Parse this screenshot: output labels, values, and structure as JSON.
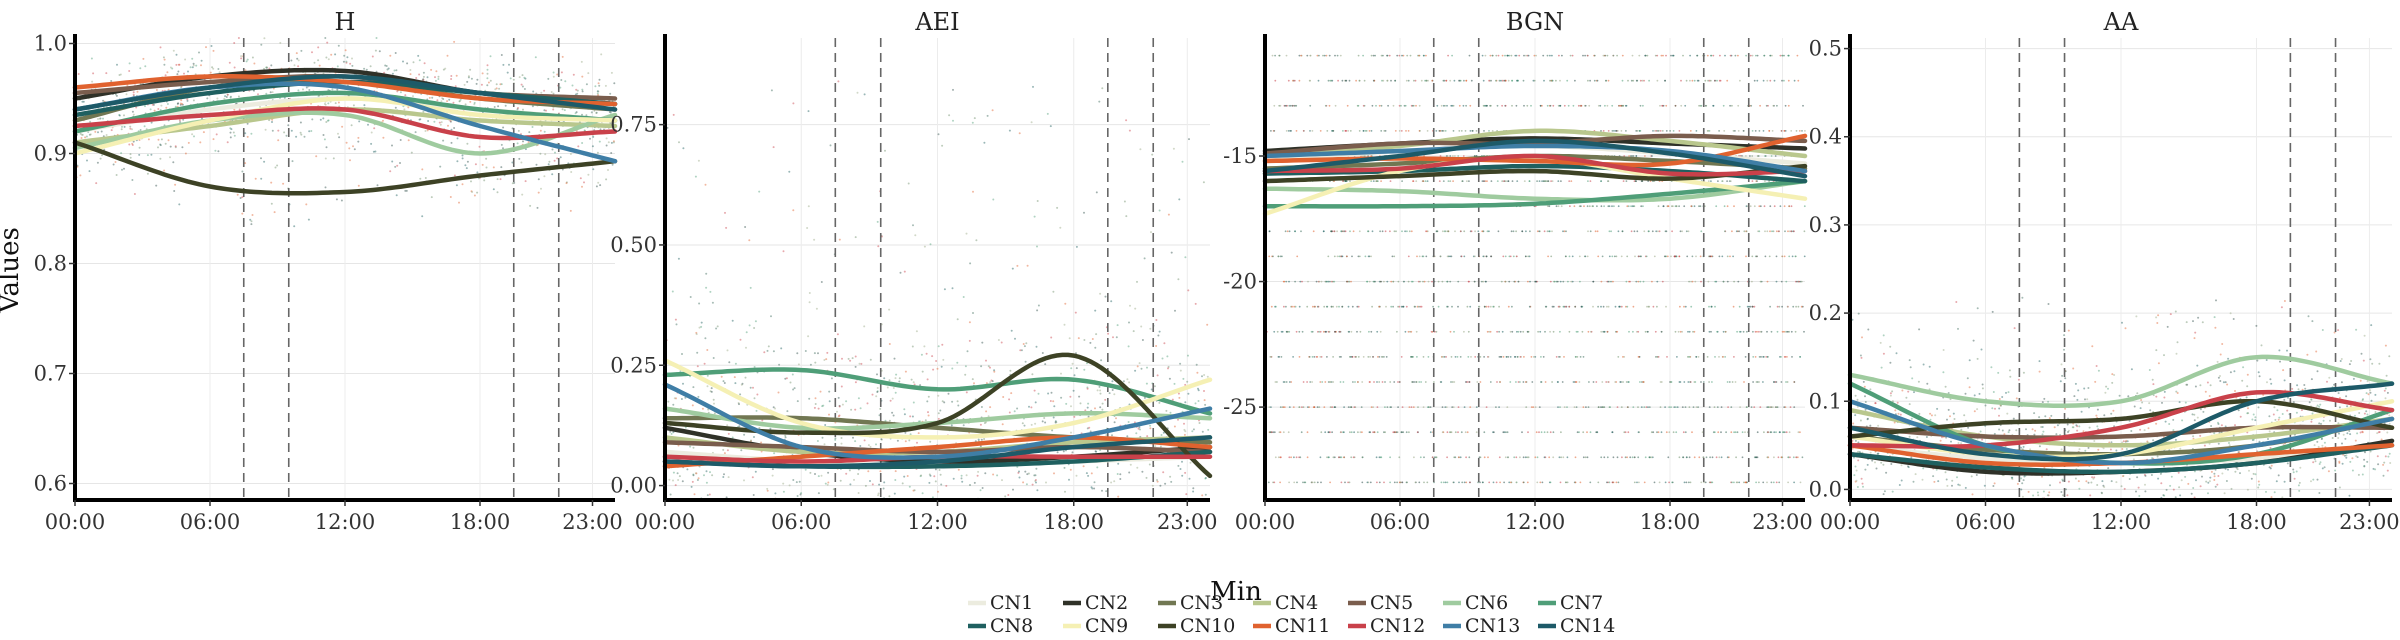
{
  "chart_data": {
    "type": "line",
    "ylabel": "Values",
    "xlabel": "Min",
    "x_ticks": [
      "00:00",
      "06:00",
      "12:00",
      "18:00",
      "23:00"
    ],
    "x_tick_hours": [
      0,
      6,
      12,
      18,
      23
    ],
    "x_range_hours": [
      0,
      24
    ],
    "vertical_dashed_lines_hours": [
      7.5,
      9.5,
      19.5,
      21.5
    ],
    "grid": true,
    "legend_position": "bottom",
    "series_colors": {
      "CN1": "#ececdf",
      "CN2": "#2f3128",
      "CN3": "#717752",
      "CN4": "#b9c78d",
      "CN5": "#7a5d4d",
      "CN6": "#9fcb9f",
      "CN7": "#4f9e78",
      "CN8": "#1f6060",
      "CN9": "#f5f0b4",
      "CN10": "#3d4225",
      "CN11": "#e0622f",
      "CN12": "#c9414a",
      "CN13": "#3f7ea6",
      "CN14": "#1d5a68"
    },
    "panels": [
      {
        "title": "H",
        "ylim": [
          0.585,
          1.005
        ],
        "y_ticks": [
          0.6,
          0.7,
          0.8,
          0.9,
          1.0
        ],
        "y_tick_labels": [
          "0.6",
          "0.7",
          "0.8",
          "0.9",
          "1.0"
        ],
        "scatter_band": [
          0.86,
          0.99
        ],
        "series": [
          {
            "name": "CN1",
            "x": [
              0,
              6,
              12,
              18,
              24
            ],
            "y": [
              0.92,
              0.94,
              0.95,
              0.94,
              0.93
            ]
          },
          {
            "name": "CN2",
            "x": [
              0,
              6,
              12,
              18,
              24
            ],
            "y": [
              0.95,
              0.97,
              0.975,
              0.955,
              0.945
            ]
          },
          {
            "name": "CN3",
            "x": [
              0,
              6,
              12,
              18,
              24
            ],
            "y": [
              0.93,
              0.96,
              0.965,
              0.95,
              0.94
            ]
          },
          {
            "name": "CN4",
            "x": [
              0,
              6,
              12,
              18,
              24
            ],
            "y": [
              0.91,
              0.925,
              0.94,
              0.93,
              0.925
            ]
          },
          {
            "name": "CN5",
            "x": [
              0,
              6,
              12,
              18,
              24
            ],
            "y": [
              0.955,
              0.965,
              0.97,
              0.955,
              0.95
            ]
          },
          {
            "name": "CN6",
            "x": [
              0,
              6,
              12,
              18,
              24
            ],
            "y": [
              0.905,
              0.93,
              0.935,
              0.9,
              0.935
            ]
          },
          {
            "name": "CN7",
            "x": [
              0,
              6,
              12,
              18,
              24
            ],
            "y": [
              0.92,
              0.945,
              0.955,
              0.94,
              0.93
            ]
          },
          {
            "name": "CN8",
            "x": [
              0,
              6,
              12,
              18,
              24
            ],
            "y": [
              0.935,
              0.955,
              0.965,
              0.955,
              0.945
            ]
          },
          {
            "name": "CN9",
            "x": [
              0,
              6,
              12,
              18,
              24
            ],
            "y": [
              0.9,
              0.93,
              0.95,
              0.935,
              0.93
            ]
          },
          {
            "name": "CN10",
            "x": [
              0,
              6,
              12,
              18,
              24
            ],
            "y": [
              0.91,
              0.87,
              0.865,
              0.88,
              0.893
            ]
          },
          {
            "name": "CN11",
            "x": [
              0,
              6,
              12,
              18,
              24
            ],
            "y": [
              0.96,
              0.97,
              0.965,
              0.95,
              0.945
            ]
          },
          {
            "name": "CN12",
            "x": [
              0,
              6,
              12,
              18,
              24
            ],
            "y": [
              0.925,
              0.935,
              0.94,
              0.915,
              0.92
            ]
          },
          {
            "name": "CN13",
            "x": [
              0,
              6,
              12,
              18,
              24
            ],
            "y": [
              0.94,
              0.96,
              0.96,
              0.925,
              0.893
            ]
          },
          {
            "name": "CN14",
            "x": [
              0,
              6,
              12,
              18,
              24
            ],
            "y": [
              0.94,
              0.96,
              0.97,
              0.955,
              0.94
            ]
          }
        ]
      },
      {
        "title": "AEI",
        "ylim": [
          -0.03,
          0.93
        ],
        "y_ticks": [
          0.0,
          0.25,
          0.5,
          0.75
        ],
        "y_tick_labels": [
          "0.00",
          "0.25",
          "0.50",
          "0.75"
        ],
        "scatter_band": [
          0.0,
          0.85
        ],
        "series": [
          {
            "name": "CN1",
            "x": [
              0,
              6,
              12,
              18,
              24
            ],
            "y": [
              0.07,
              0.05,
              0.04,
              0.05,
              0.06
            ]
          },
          {
            "name": "CN2",
            "x": [
              0,
              6,
              12,
              18,
              24
            ],
            "y": [
              0.12,
              0.07,
              0.05,
              0.06,
              0.08
            ]
          },
          {
            "name": "CN3",
            "x": [
              0,
              6,
              12,
              18,
              24
            ],
            "y": [
              0.14,
              0.14,
              0.12,
              0.1,
              0.09
            ]
          },
          {
            "name": "CN4",
            "x": [
              0,
              6,
              12,
              18,
              24
            ],
            "y": [
              0.1,
              0.07,
              0.07,
              0.09,
              0.1
            ]
          },
          {
            "name": "CN5",
            "x": [
              0,
              6,
              12,
              18,
              24
            ],
            "y": [
              0.09,
              0.08,
              0.07,
              0.08,
              0.07
            ]
          },
          {
            "name": "CN6",
            "x": [
              0,
              6,
              12,
              18,
              24
            ],
            "y": [
              0.16,
              0.12,
              0.13,
              0.15,
              0.14
            ]
          },
          {
            "name": "CN7",
            "x": [
              0,
              6,
              12,
              18,
              24
            ],
            "y": [
              0.23,
              0.24,
              0.2,
              0.22,
              0.15
            ]
          },
          {
            "name": "CN8",
            "x": [
              0,
              6,
              12,
              18,
              24
            ],
            "y": [
              0.05,
              0.04,
              0.04,
              0.05,
              0.07
            ]
          },
          {
            "name": "CN9",
            "x": [
              0,
              6,
              12,
              18,
              24
            ],
            "y": [
              0.26,
              0.13,
              0.1,
              0.13,
              0.22
            ]
          },
          {
            "name": "CN10",
            "x": [
              0,
              6,
              12,
              18,
              24
            ],
            "y": [
              0.13,
              0.11,
              0.13,
              0.27,
              0.02
            ]
          },
          {
            "name": "CN11",
            "x": [
              0,
              6,
              12,
              18,
              24
            ],
            "y": [
              0.04,
              0.06,
              0.08,
              0.1,
              0.08
            ]
          },
          {
            "name": "CN12",
            "x": [
              0,
              6,
              12,
              18,
              24
            ],
            "y": [
              0.06,
              0.05,
              0.06,
              0.06,
              0.06
            ]
          },
          {
            "name": "CN13",
            "x": [
              0,
              6,
              12,
              18,
              24
            ],
            "y": [
              0.21,
              0.08,
              0.06,
              0.1,
              0.16
            ]
          },
          {
            "name": "CN14",
            "x": [
              0,
              6,
              12,
              18,
              24
            ],
            "y": [
              0.05,
              0.04,
              0.05,
              0.08,
              0.1
            ]
          }
        ]
      },
      {
        "title": "BGN",
        "ylim": [
          -28.7,
          -10.3
        ],
        "y_ticks": [
          -25,
          -20,
          -15
        ],
        "y_tick_labels": [
          "-25",
          "-20",
          "-15"
        ],
        "scatter_levels": [
          -11,
          -12,
          -13,
          -14,
          -15,
          -16,
          -17,
          -18,
          -19,
          -20,
          -21,
          -22,
          -23,
          -24,
          -25,
          -26,
          -27,
          -28
        ],
        "series": [
          {
            "name": "CN1",
            "x": [
              0,
              6,
              12,
              18,
              24
            ],
            "y": [
              -15.2,
              -14.8,
              -14.6,
              -14.9,
              -15.3
            ]
          },
          {
            "name": "CN2",
            "x": [
              0,
              6,
              12,
              18,
              24
            ],
            "y": [
              -14.8,
              -14.5,
              -14.3,
              -14.5,
              -14.7
            ]
          },
          {
            "name": "CN3",
            "x": [
              0,
              6,
              12,
              18,
              24
            ],
            "y": [
              -15.5,
              -15.3,
              -15.0,
              -15.2,
              -15.5
            ]
          },
          {
            "name": "CN4",
            "x": [
              0,
              6,
              12,
              18,
              24
            ],
            "y": [
              -15.0,
              -14.6,
              -14.0,
              -14.4,
              -15.0
            ]
          },
          {
            "name": "CN5",
            "x": [
              0,
              6,
              12,
              18,
              24
            ],
            "y": [
              -14.9,
              -14.5,
              -14.5,
              -14.2,
              -14.4
            ]
          },
          {
            "name": "CN6",
            "x": [
              0,
              6,
              12,
              18,
              24
            ],
            "y": [
              -16.3,
              -16.4,
              -16.7,
              -16.7,
              -16.0
            ]
          },
          {
            "name": "CN7",
            "x": [
              0,
              6,
              12,
              18,
              24
            ],
            "y": [
              -17.0,
              -17.0,
              -16.9,
              -16.5,
              -16.0
            ]
          },
          {
            "name": "CN8",
            "x": [
              0,
              6,
              12,
              18,
              24
            ],
            "y": [
              -15.7,
              -15.6,
              -15.4,
              -15.6,
              -16.0
            ]
          },
          {
            "name": "CN9",
            "x": [
              0,
              6,
              12,
              18,
              24
            ],
            "y": [
              -17.3,
              -15.6,
              -15.1,
              -15.9,
              -16.7
            ]
          },
          {
            "name": "CN10",
            "x": [
              0,
              6,
              12,
              18,
              24
            ],
            "y": [
              -16.0,
              -15.8,
              -15.6,
              -15.9,
              -15.4
            ]
          },
          {
            "name": "CN11",
            "x": [
              0,
              6,
              12,
              18,
              24
            ],
            "y": [
              -15.2,
              -15.1,
              -15.2,
              -15.3,
              -14.2
            ]
          },
          {
            "name": "CN12",
            "x": [
              0,
              6,
              12,
              18,
              24
            ],
            "y": [
              -15.6,
              -15.5,
              -15.0,
              -15.7,
              -15.6
            ]
          },
          {
            "name": "CN13",
            "x": [
              0,
              6,
              12,
              18,
              24
            ],
            "y": [
              -15.0,
              -14.8,
              -14.6,
              -14.8,
              -15.6
            ]
          },
          {
            "name": "CN14",
            "x": [
              0,
              6,
              12,
              18,
              24
            ],
            "y": [
              -15.6,
              -15.0,
              -14.4,
              -14.9,
              -15.8
            ]
          }
        ]
      },
      {
        "title": "AA",
        "ylim": [
          -0.012,
          0.512
        ],
        "y_ticks": [
          0.0,
          0.1,
          0.2,
          0.3,
          0.4,
          0.5
        ],
        "y_tick_labels": [
          "0.0",
          "0.1",
          "0.2",
          "0.3",
          "0.4",
          "0.5"
        ],
        "scatter_band": [
          0.0,
          0.22
        ],
        "series": [
          {
            "name": "CN1",
            "x": [
              0,
              6,
              12,
              18,
              24
            ],
            "y": [
              0.05,
              0.035,
              0.03,
              0.035,
              0.05
            ]
          },
          {
            "name": "CN2",
            "x": [
              0,
              6,
              12,
              18,
              24
            ],
            "y": [
              0.04,
              0.02,
              0.02,
              0.03,
              0.055
            ]
          },
          {
            "name": "CN3",
            "x": [
              0,
              6,
              12,
              18,
              24
            ],
            "y": [
              0.06,
              0.045,
              0.04,
              0.05,
              0.08
            ]
          },
          {
            "name": "CN4",
            "x": [
              0,
              6,
              12,
              18,
              24
            ],
            "y": [
              0.09,
              0.06,
              0.05,
              0.06,
              0.08
            ]
          },
          {
            "name": "CN5",
            "x": [
              0,
              6,
              12,
              18,
              24
            ],
            "y": [
              0.07,
              0.06,
              0.06,
              0.07,
              0.07
            ]
          },
          {
            "name": "CN6",
            "x": [
              0,
              6,
              12,
              18,
              24
            ],
            "y": [
              0.13,
              0.1,
              0.1,
              0.15,
              0.12
            ]
          },
          {
            "name": "CN7",
            "x": [
              0,
              6,
              12,
              18,
              24
            ],
            "y": [
              0.12,
              0.05,
              0.03,
              0.04,
              0.09
            ]
          },
          {
            "name": "CN8",
            "x": [
              0,
              6,
              12,
              18,
              24
            ],
            "y": [
              0.04,
              0.025,
              0.02,
              0.03,
              0.05
            ]
          },
          {
            "name": "CN9",
            "x": [
              0,
              6,
              12,
              18,
              24
            ],
            "y": [
              0.06,
              0.04,
              0.04,
              0.07,
              0.1
            ]
          },
          {
            "name": "CN10",
            "x": [
              0,
              6,
              12,
              18,
              24
            ],
            "y": [
              0.06,
              0.075,
              0.08,
              0.1,
              0.07
            ]
          },
          {
            "name": "CN11",
            "x": [
              0,
              6,
              12,
              18,
              24
            ],
            "y": [
              0.05,
              0.03,
              0.03,
              0.04,
              0.05
            ]
          },
          {
            "name": "CN12",
            "x": [
              0,
              6,
              12,
              18,
              24
            ],
            "y": [
              0.05,
              0.05,
              0.07,
              0.11,
              0.09
            ]
          },
          {
            "name": "CN13",
            "x": [
              0,
              6,
              12,
              18,
              24
            ],
            "y": [
              0.1,
              0.05,
              0.03,
              0.05,
              0.08
            ]
          },
          {
            "name": "CN14",
            "x": [
              0,
              6,
              12,
              18,
              24
            ],
            "y": [
              0.07,
              0.04,
              0.04,
              0.1,
              0.12
            ]
          }
        ]
      }
    ]
  }
}
